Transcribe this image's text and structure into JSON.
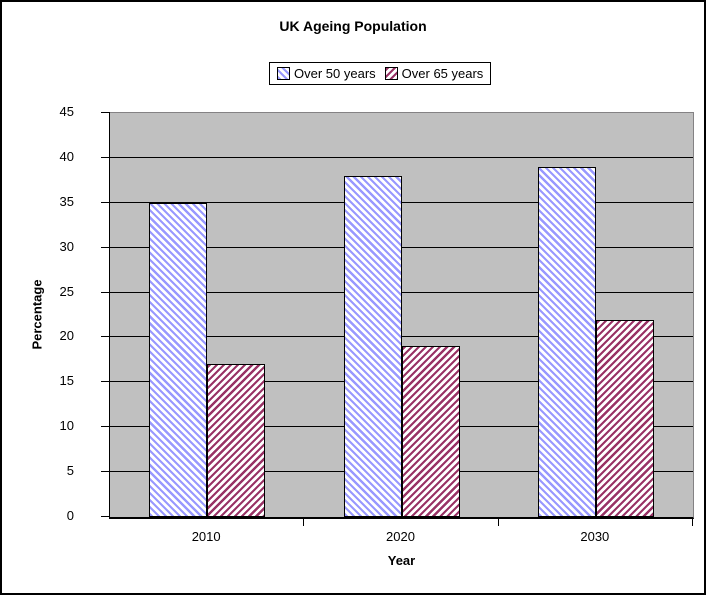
{
  "chart_data": {
    "type": "bar",
    "title": "UK Ageing Population",
    "xlabel": "Year",
    "ylabel": "Percentage",
    "categories": [
      "2010",
      "2020",
      "2030"
    ],
    "series": [
      {
        "name": "Over 50 years",
        "values": [
          35,
          38,
          39
        ],
        "color": "#9999FF",
        "hatch": "backward-diagonal"
      },
      {
        "name": "Over 65 years",
        "values": [
          17,
          19,
          22
        ],
        "color": "#993366",
        "hatch": "forward-diagonal"
      }
    ],
    "ylim": [
      0,
      45
    ],
    "ytick_interval": 5,
    "grid": true,
    "legend_position": "top-center",
    "plot_background": "#C0C0C0",
    "gridline_color": "#000000",
    "axis_color": "#000000"
  }
}
